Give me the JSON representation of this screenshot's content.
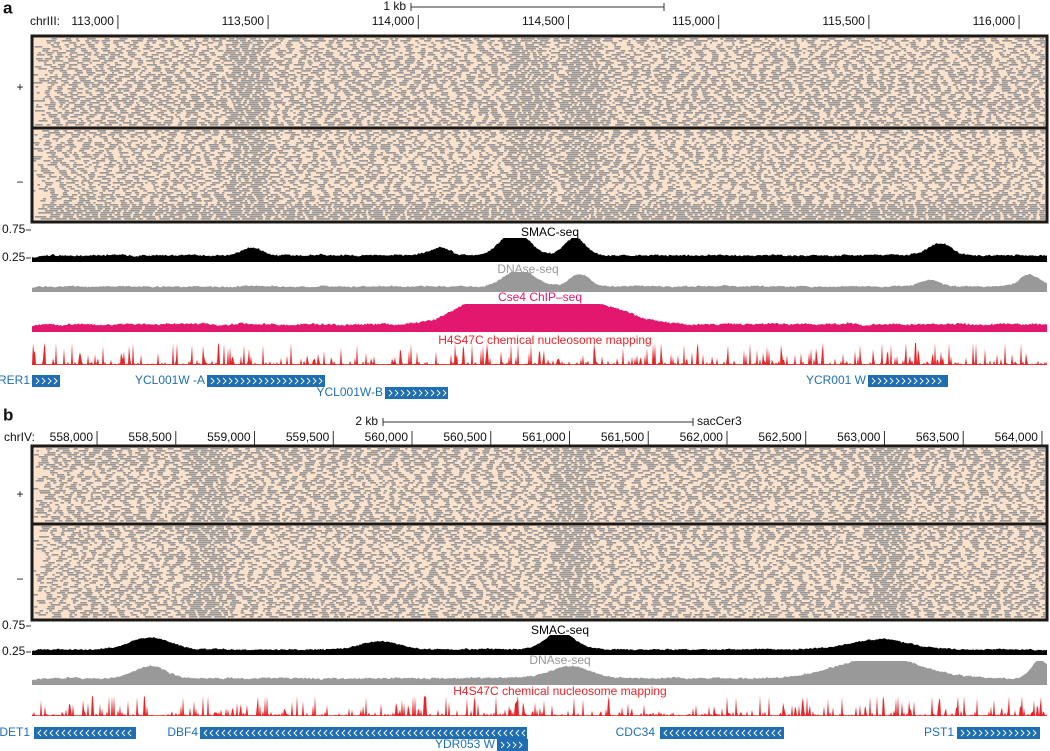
{
  "panels": [
    {
      "label": "a",
      "scale_bar": "1 kb",
      "chrom": "chrIII:",
      "xlim": [
        112714,
        116093
      ],
      "ticks": [
        {
          "value": 113000,
          "label": "113,000"
        },
        {
          "value": 113500,
          "label": "113,500"
        },
        {
          "value": 114000,
          "label": "114,000"
        },
        {
          "value": 114500,
          "label": "114,500"
        },
        {
          "value": 115000,
          "label": "115,000"
        },
        {
          "value": 115500,
          "label": "115,500"
        },
        {
          "value": 116000,
          "label": "116,000"
        }
      ],
      "strands": [
        "+",
        "−"
      ],
      "track_ticks": [
        0.75,
        0.25
      ],
      "tracks": [
        {
          "name": "SMAC-seq",
          "color": "#000000"
        },
        {
          "name": "DNAse-seq",
          "color": "#999999"
        },
        {
          "name": "Cse4 ChIP–seq",
          "color": "#e3176d"
        },
        {
          "name": "H4S47C chemical nucleosome mapping",
          "color": "#e8262a"
        }
      ],
      "genes": [
        "RER1",
        "YCL001W -A",
        "YCL001W-B",
        "YCR001 W"
      ]
    },
    {
      "label": "b",
      "scale_bar": "2 kb",
      "assembly": "sacCer3",
      "chrom": "chrIV:",
      "xlim": [
        557587,
        564032
      ],
      "ticks": [
        {
          "value": 558000,
          "label": "558,000"
        },
        {
          "value": 558500,
          "label": "558,500"
        },
        {
          "value": 559000,
          "label": "559,000"
        },
        {
          "value": 559500,
          "label": "559,500"
        },
        {
          "value": 560000,
          "label": "560,000"
        },
        {
          "value": 560500,
          "label": "560,500"
        },
        {
          "value": 561000,
          "label": "561,000"
        },
        {
          "value": 561500,
          "label": "561,500"
        },
        {
          "value": 562000,
          "label": "562,000"
        },
        {
          "value": 562500,
          "label": "562,500"
        },
        {
          "value": 563000,
          "label": "563,000"
        },
        {
          "value": 563500,
          "label": "563,500"
        },
        {
          "value": 564000,
          "label": "564,000"
        }
      ],
      "strands": [
        "+",
        "−"
      ],
      "track_ticks": [
        0.75,
        0.25
      ],
      "tracks": [
        {
          "name": "SMAC-seq",
          "color": "#000000"
        },
        {
          "name": "DNAse-seq",
          "color": "#999999"
        },
        {
          "name": "H4S47C chemical nucleosome mapping",
          "color": "#e8262a"
        }
      ],
      "genes": [
        "DET1",
        "DBF4",
        "YDR053 W",
        "CDC34",
        "PST1"
      ]
    }
  ]
}
